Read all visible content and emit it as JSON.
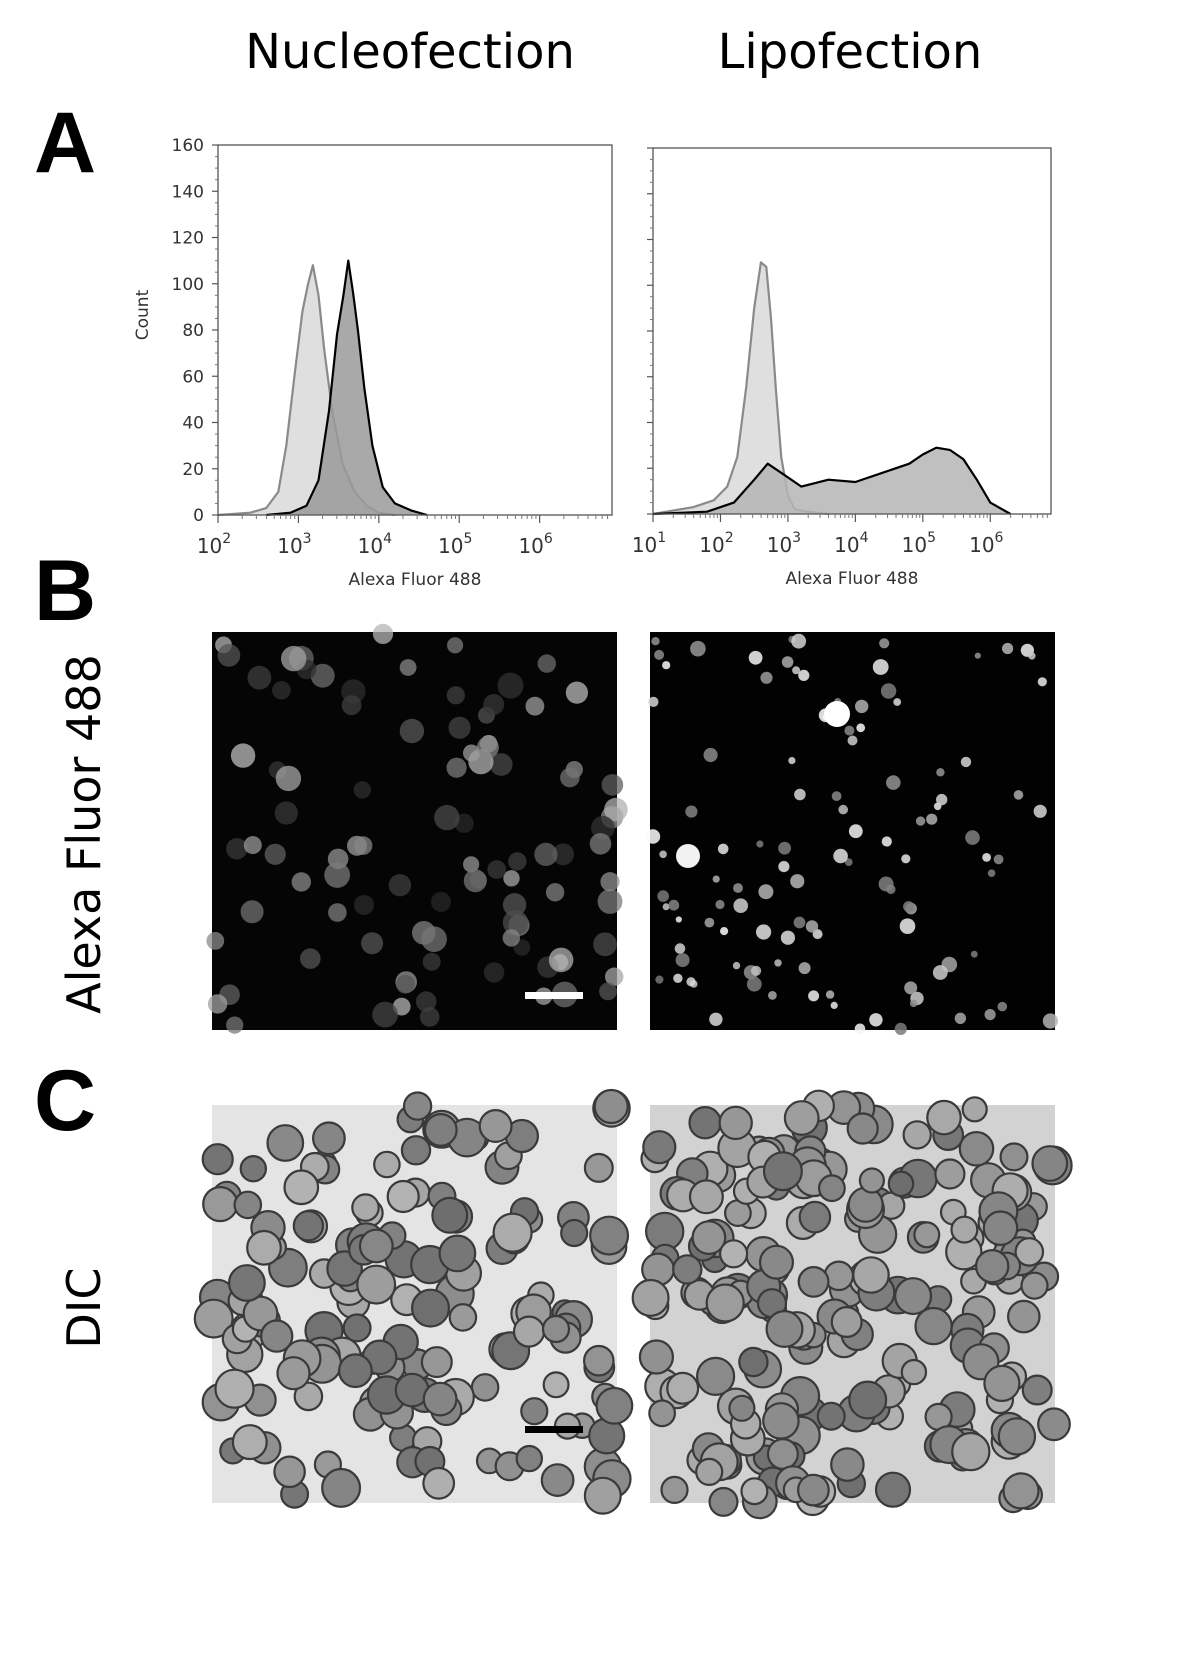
{
  "column_titles": [
    "Nucleofection",
    "Lipofection"
  ],
  "panel_labels": [
    "A",
    "B",
    "C"
  ],
  "row_labels": {
    "fluorescence": "Alexa Fluor 488",
    "dic": "DIC"
  },
  "chart_data": [
    {
      "type": "histogram",
      "panel": "A",
      "column": "Nucleofection",
      "xlabel": "Alexa Fluor 488",
      "ylabel": "Count",
      "xscale": "log",
      "xticks": [
        "10^2",
        "10^3",
        "10^4",
        "10^5",
        "10^6"
      ],
      "xticks_exp": [
        2,
        3,
        4,
        5,
        6
      ],
      "yticks": [
        0,
        20,
        40,
        60,
        80,
        100,
        120,
        140,
        160
      ],
      "xlim_exp": [
        2,
        6.9
      ],
      "ylim": [
        0,
        160
      ],
      "series": [
        {
          "color": "#8a8a8a",
          "fill": "#d9d9d9",
          "x_exp": [
            2.0,
            2.4,
            2.6,
            2.75,
            2.85,
            2.95,
            3.05,
            3.12,
            3.18,
            3.25,
            3.32,
            3.42,
            3.55,
            3.7,
            3.85,
            4.0,
            4.2
          ],
          "y": [
            0,
            1,
            3,
            10,
            30,
            60,
            88,
            100,
            108,
            95,
            72,
            45,
            22,
            10,
            4,
            1,
            0
          ]
        },
        {
          "color": "#000000",
          "fill": "#9a9a9a",
          "x_exp": [
            2.6,
            2.9,
            3.1,
            3.25,
            3.38,
            3.48,
            3.56,
            3.62,
            3.68,
            3.74,
            3.82,
            3.92,
            4.05,
            4.2,
            4.4,
            4.6
          ],
          "y": [
            0,
            1,
            4,
            15,
            45,
            78,
            95,
            110,
            96,
            80,
            55,
            30,
            12,
            5,
            2,
            0
          ]
        }
      ]
    },
    {
      "type": "histogram",
      "panel": "A",
      "column": "Lipofection",
      "xlabel": "Alexa Fluor 488",
      "xscale": "log",
      "xticks": [
        "10^1",
        "10^2",
        "10^3",
        "10^4",
        "10^5",
        "10^6"
      ],
      "xticks_exp": [
        1,
        2,
        3,
        4,
        5,
        6
      ],
      "xlim_exp": [
        1,
        6.9
      ],
      "ylim": [
        0,
        160
      ],
      "series": [
        {
          "color": "#8a8a8a",
          "fill": "#d9d9d9",
          "x_exp": [
            1.0,
            1.6,
            1.9,
            2.1,
            2.25,
            2.38,
            2.5,
            2.6,
            2.68,
            2.75,
            2.82,
            2.9,
            3.0,
            3.1,
            3.3,
            3.6
          ],
          "y": [
            0,
            3,
            6,
            12,
            25,
            55,
            90,
            110,
            108,
            85,
            55,
            25,
            8,
            2,
            1,
            0
          ]
        },
        {
          "color": "#000000",
          "fill": "#b5b5b5",
          "x_exp": [
            1.0,
            1.8,
            2.2,
            2.5,
            2.7,
            2.9,
            3.2,
            3.6,
            4.0,
            4.4,
            4.8,
            5.0,
            5.2,
            5.4,
            5.6,
            5.8,
            6.0,
            6.3
          ],
          "y": [
            0,
            1,
            5,
            15,
            22,
            18,
            12,
            15,
            14,
            18,
            22,
            26,
            29,
            28,
            24,
            15,
            5,
            0
          ]
        }
      ]
    }
  ]
}
